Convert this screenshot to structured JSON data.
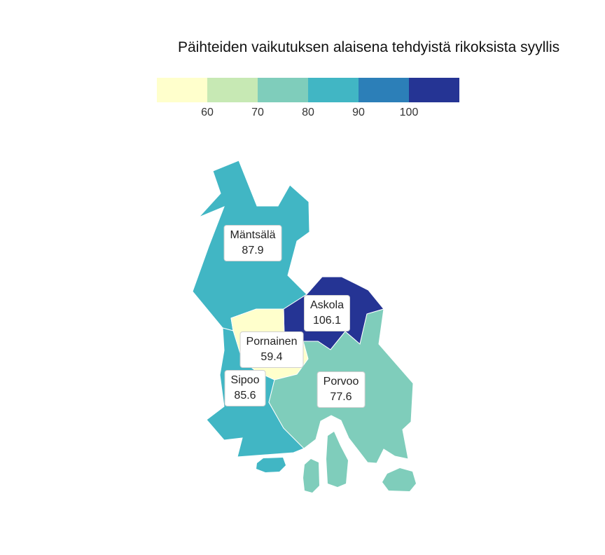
{
  "title": "Päihteiden vaikutuksen alaisena tehdyistä rikoksista syyllis",
  "legend": {
    "colors": [
      "#ffffcc",
      "#c7e9b4",
      "#7fcdbb",
      "#41b6c4",
      "#2c7fb8",
      "#253494"
    ],
    "ticks": [
      "60",
      "70",
      "80",
      "90",
      "100"
    ]
  },
  "regions": [
    {
      "name": "Mäntsälä",
      "value": "87.9",
      "color": "#41b6c4"
    },
    {
      "name": "Askola",
      "value": "106.1",
      "color": "#253494"
    },
    {
      "name": "Pornainen",
      "value": "59.4",
      "color": "#ffffcc"
    },
    {
      "name": "Sipoo",
      "value": "85.6",
      "color": "#41b6c4"
    },
    {
      "name": "Porvoo",
      "value": "77.6",
      "color": "#7fcdbb"
    }
  ]
}
